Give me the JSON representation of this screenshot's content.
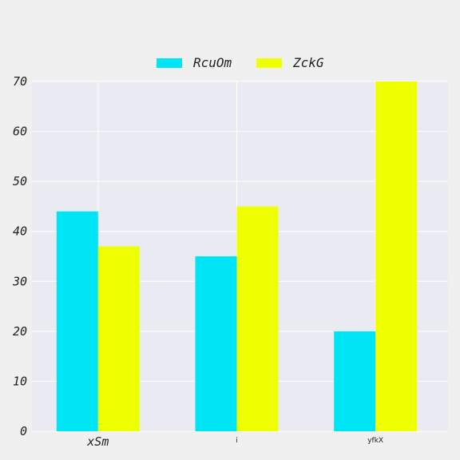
{
  "chart_data": {
    "type": "bar",
    "categories": [
      "xSm",
      "i",
      "yfkX"
    ],
    "series": [
      {
        "name": "RcuOm",
        "color": "#00e5f5",
        "values": [
          44,
          35,
          20
        ]
      },
      {
        "name": "ZckG",
        "color": "#eeff00",
        "values": [
          37,
          45,
          70
        ]
      }
    ],
    "ylim": [
      0,
      70
    ],
    "yticks": [
      0,
      10,
      20,
      30,
      40,
      50,
      60,
      70
    ],
    "grid": true,
    "legend": "top-center",
    "plot_background": "#eaeaf2",
    "page_background": "#f0f0f0"
  }
}
